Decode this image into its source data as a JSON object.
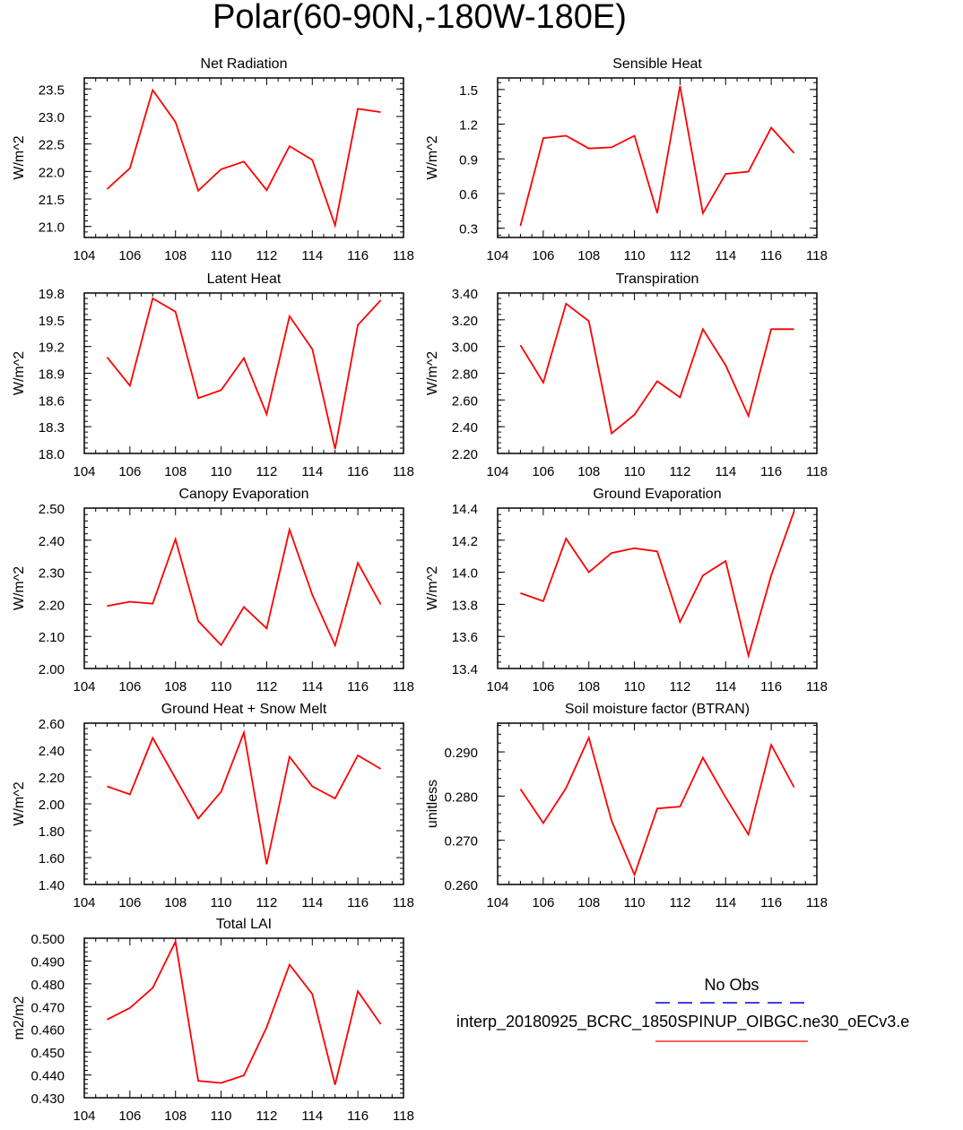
{
  "title": "Polar(60-90N,-180W-180E)",
  "colors": {
    "line": "#ff0000",
    "axis": "#000000",
    "legend_obs": "#0000cd"
  },
  "legend": {
    "obs_label": "No Obs",
    "model_label": "interp_20180925_BCRC_1850SPINUP_OIBGC.ne30_oECv3.e"
  },
  "chart_data": [
    {
      "type": "line",
      "title": "Net Radiation",
      "ylabel": "W/m^2",
      "xlim": [
        104,
        118
      ],
      "xticks": [
        104,
        106,
        108,
        110,
        112,
        114,
        116,
        118
      ],
      "ylim": [
        20.8,
        23.7
      ],
      "yticks": [
        "21.0",
        "21.5",
        "22.0",
        "22.5",
        "23.0",
        "23.5"
      ],
      "x": [
        105,
        106,
        107,
        108,
        109,
        110,
        111,
        112,
        113,
        114,
        115,
        116,
        117
      ],
      "y": [
        21.68,
        22.06,
        23.48,
        22.9,
        21.65,
        22.04,
        22.18,
        21.66,
        22.46,
        22.21,
        21.02,
        23.14,
        23.08
      ]
    },
    {
      "type": "line",
      "title": "Sensible Heat",
      "ylabel": "W/m^2",
      "xlim": [
        104,
        118
      ],
      "xticks": [
        104,
        106,
        108,
        110,
        112,
        114,
        116,
        118
      ],
      "ylim": [
        0.22,
        1.6
      ],
      "yticks": [
        "0.3",
        "0.6",
        "0.9",
        "1.2",
        "1.5"
      ],
      "x": [
        105,
        106,
        107,
        108,
        109,
        110,
        111,
        112,
        113,
        114,
        115,
        116,
        117
      ],
      "y": [
        0.32,
        1.08,
        1.1,
        0.99,
        1.0,
        1.1,
        0.43,
        1.53,
        0.43,
        0.77,
        0.79,
        1.17,
        0.95
      ]
    },
    {
      "type": "line",
      "title": "Latent Heat",
      "ylabel": "W/m^2",
      "xlim": [
        104,
        118
      ],
      "xticks": [
        104,
        106,
        108,
        110,
        112,
        114,
        116,
        118
      ],
      "ylim": [
        18.0,
        19.8
      ],
      "yticks": [
        "18.0",
        "18.3",
        "18.6",
        "18.9",
        "19.2",
        "19.5",
        "19.8"
      ],
      "x": [
        105,
        106,
        107,
        108,
        109,
        110,
        111,
        112,
        113,
        114,
        115,
        116,
        117
      ],
      "y": [
        19.08,
        18.76,
        19.74,
        19.59,
        18.62,
        18.71,
        19.07,
        18.44,
        19.54,
        19.17,
        18.05,
        19.44,
        19.72
      ]
    },
    {
      "type": "line",
      "title": "Transpiration",
      "ylabel": "W/m^2",
      "xlim": [
        104,
        118
      ],
      "xticks": [
        104,
        106,
        108,
        110,
        112,
        114,
        116,
        118
      ],
      "ylim": [
        2.2,
        3.4
      ],
      "yticks": [
        "2.20",
        "2.40",
        "2.60",
        "2.80",
        "3.00",
        "3.20",
        "3.40"
      ],
      "x": [
        105,
        106,
        107,
        108,
        109,
        110,
        111,
        112,
        113,
        114,
        115,
        116,
        117
      ],
      "y": [
        3.01,
        2.73,
        3.32,
        3.19,
        2.35,
        2.49,
        2.74,
        2.62,
        3.13,
        2.86,
        2.48,
        3.13,
        3.13
      ]
    },
    {
      "type": "line",
      "title": "Canopy Evaporation",
      "ylabel": "W/m^2",
      "xlim": [
        104,
        118
      ],
      "xticks": [
        104,
        106,
        108,
        110,
        112,
        114,
        116,
        118
      ],
      "ylim": [
        2.0,
        2.5
      ],
      "yticks": [
        "2.00",
        "2.10",
        "2.20",
        "2.30",
        "2.40",
        "2.50"
      ],
      "x": [
        105,
        106,
        107,
        108,
        109,
        110,
        111,
        112,
        113,
        114,
        115,
        116,
        117
      ],
      "y": [
        2.195,
        2.208,
        2.202,
        2.403,
        2.148,
        2.073,
        2.192,
        2.125,
        2.433,
        2.23,
        2.072,
        2.329,
        2.2
      ]
    },
    {
      "type": "line",
      "title": "Ground Evaporation",
      "ylabel": "W/m^2",
      "xlim": [
        104,
        118
      ],
      "xticks": [
        104,
        106,
        108,
        110,
        112,
        114,
        116,
        118
      ],
      "ylim": [
        13.4,
        14.4
      ],
      "yticks": [
        "13.4",
        "13.6",
        "13.8",
        "14.0",
        "14.2",
        "14.4"
      ],
      "x": [
        105,
        106,
        107,
        108,
        109,
        110,
        111,
        112,
        113,
        114,
        115,
        116,
        117
      ],
      "y": [
        13.87,
        13.82,
        14.21,
        14.0,
        14.12,
        14.15,
        14.13,
        13.69,
        13.98,
        14.07,
        13.48,
        13.98,
        14.38
      ]
    },
    {
      "type": "line",
      "title": "Ground Heat + Snow Melt",
      "ylabel": "W/m^2",
      "xlim": [
        104,
        118
      ],
      "xticks": [
        104,
        106,
        108,
        110,
        112,
        114,
        116,
        118
      ],
      "ylim": [
        1.4,
        2.6
      ],
      "yticks": [
        "1.40",
        "1.60",
        "1.80",
        "2.00",
        "2.20",
        "2.40",
        "2.60"
      ],
      "x": [
        105,
        106,
        107,
        108,
        109,
        110,
        111,
        112,
        113,
        114,
        115,
        116,
        117
      ],
      "y": [
        2.13,
        2.07,
        2.49,
        2.19,
        1.89,
        2.09,
        2.53,
        1.55,
        2.35,
        2.13,
        2.04,
        2.36,
        2.26
      ]
    },
    {
      "type": "line",
      "title": "Soil moisture factor (BTRAN)",
      "ylabel": "unitless",
      "xlim": [
        104,
        118
      ],
      "xticks": [
        104,
        106,
        108,
        110,
        112,
        114,
        116,
        118
      ],
      "ylim": [
        0.26,
        0.2965
      ],
      "yticks": [
        "0.260",
        "0.270",
        "0.280",
        "0.290"
      ],
      "x": [
        105,
        106,
        107,
        108,
        109,
        110,
        111,
        112,
        113,
        114,
        115,
        116,
        117
      ],
      "y": [
        0.2816,
        0.2739,
        0.2818,
        0.2932,
        0.2744,
        0.2622,
        0.2772,
        0.2776,
        0.2887,
        0.2797,
        0.2713,
        0.2916,
        0.282
      ]
    },
    {
      "type": "line",
      "title": "Total LAI",
      "ylabel": "m2/m2",
      "xlim": [
        104,
        118
      ],
      "xticks": [
        104,
        106,
        108,
        110,
        112,
        114,
        116,
        118
      ],
      "ylim": [
        0.43,
        0.5
      ],
      "yticks": [
        "0.430",
        "0.440",
        "0.450",
        "0.460",
        "0.470",
        "0.480",
        "0.490",
        "0.500"
      ],
      "x": [
        105,
        106,
        107,
        108,
        109,
        110,
        111,
        112,
        113,
        114,
        115,
        116,
        117
      ],
      "y": [
        0.4643,
        0.4694,
        0.4782,
        0.4985,
        0.4374,
        0.4365,
        0.4398,
        0.4609,
        0.4884,
        0.4755,
        0.4357,
        0.4767,
        0.4623
      ]
    }
  ]
}
